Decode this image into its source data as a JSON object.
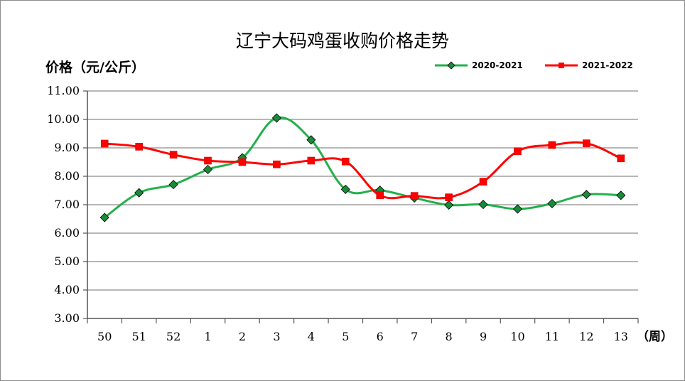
{
  "chart_data": {
    "type": "line",
    "title": "辽宁大码鸡蛋收购价格走势",
    "ylabel": "价格（元/公斤）",
    "xlabel": "（周）",
    "categories": [
      "50",
      "51",
      "52",
      "1",
      "2",
      "3",
      "4",
      "5",
      "6",
      "7",
      "8",
      "9",
      "10",
      "11",
      "12",
      "13"
    ],
    "ylim": [
      3.0,
      11.0
    ],
    "yticks": [
      "3.00",
      "4.00",
      "5.00",
      "6.00",
      "7.00",
      "8.00",
      "9.00",
      "10.00",
      "11.00"
    ],
    "grid": true,
    "legend_position": "top-right",
    "series": [
      {
        "name": "2020-2021",
        "color": "#22b04b",
        "marker": "diamond",
        "values": [
          6.55,
          7.42,
          7.71,
          8.24,
          8.65,
          10.05,
          9.28,
          7.54,
          7.51,
          7.24,
          6.99,
          7.01,
          6.85,
          7.04,
          7.36,
          7.33
        ]
      },
      {
        "name": "2021-2022",
        "color": "#ff0000",
        "marker": "square",
        "values": [
          9.15,
          9.04,
          8.76,
          8.55,
          8.5,
          8.42,
          8.55,
          8.52,
          7.33,
          7.31,
          7.26,
          7.81,
          8.88,
          9.1,
          9.16,
          8.63
        ]
      }
    ]
  }
}
